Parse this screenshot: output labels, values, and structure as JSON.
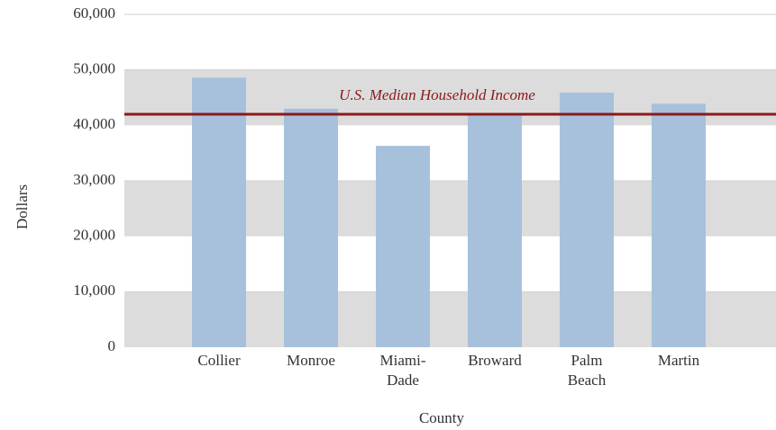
{
  "chart_data": {
    "type": "bar",
    "x_label": "County",
    "y_label": "Dollars",
    "categories": [
      "Collier",
      "Monroe",
      "Miami-Dade",
      "Broward",
      "Palm Beach",
      "Martin"
    ],
    "values": [
      48600,
      43000,
      36300,
      42000,
      45900,
      43900
    ],
    "color": "#a7c1dc",
    "ylim": [
      0,
      60000
    ],
    "yticks": [
      0,
      {
        "value": 10000,
        "label": "10,000"
      },
      {
        "value": 20000,
        "label": "20,000"
      },
      {
        "value": 30000,
        "label": "30,000"
      },
      {
        "value": 40000,
        "label": "40,000"
      },
      {
        "value": 50000,
        "label": "50,000"
      },
      {
        "value": 60000,
        "label": "60,000"
      }
    ],
    "grid": true,
    "reference_line": {
      "value": 42000,
      "label": "U.S. Median Household Income",
      "color": "#8b1a1a"
    }
  }
}
